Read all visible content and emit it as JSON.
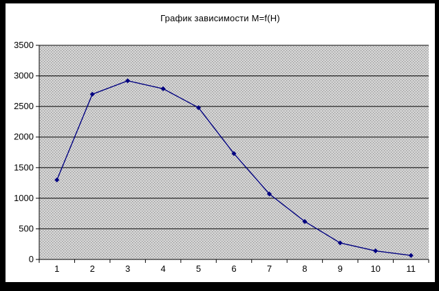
{
  "window": {
    "title": "График зависимости M=f(H)"
  },
  "chart_data": {
    "type": "line",
    "title": "График зависимости M=f(H)",
    "x": [
      1,
      2,
      3,
      4,
      5,
      6,
      7,
      8,
      9,
      10,
      11
    ],
    "series": [
      {
        "name": "M",
        "values": [
          1300,
          2700,
          2920,
          2790,
          2480,
          1730,
          1070,
          620,
          270,
          140,
          65
        ]
      }
    ],
    "xlabel": "",
    "ylabel": "",
    "ylim": [
      0,
      3500
    ],
    "ytick_step": 500,
    "y_tick_labels": [
      "0",
      "500",
      "1000",
      "1500",
      "2000",
      "2500",
      "3000",
      "3500"
    ],
    "x_tick_labels": [
      "1",
      "2",
      "3",
      "4",
      "5",
      "6",
      "7",
      "8",
      "9",
      "10",
      "11"
    ],
    "grid": "horizontal",
    "legend": "none",
    "marker": "diamond",
    "colors": {
      "line": "#000080",
      "marker": "#000080",
      "gridline": "#000000",
      "axis": "#000000",
      "text": "#000000",
      "plot_bg_base": "#d6d6d6",
      "plot_bg_dot": "#8f8f8f",
      "chart_bg": "#ffffff",
      "frame": "#000000"
    }
  }
}
